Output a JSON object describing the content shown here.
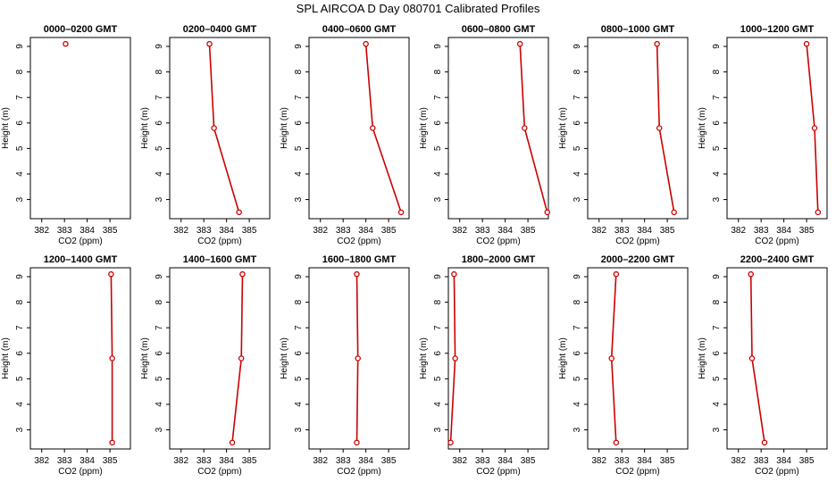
{
  "figure": {
    "title": "SPL AIRCOA D  Day 080701  Calibrated Profiles",
    "line_color": "#cc0000"
  },
  "chart_data": [
    {
      "type": "line",
      "title": "0000–0200 GMT",
      "xlabel": "CO2 (ppm)",
      "ylabel": "Height (m)",
      "xlim": [
        381.5,
        385.9
      ],
      "ylim": [
        2.25,
        9.35
      ],
      "x_ticks": [
        382,
        383,
        384,
        385
      ],
      "y_ticks": [
        3,
        4,
        5,
        6,
        7,
        8,
        9
      ],
      "series": [
        {
          "x": [
            383.05
          ],
          "y": [
            9.1
          ]
        }
      ]
    },
    {
      "type": "line",
      "title": "0200–0400 GMT",
      "xlabel": "CO2 (ppm)",
      "ylabel": "Height (m)",
      "xlim": [
        381.5,
        385.9
      ],
      "ylim": [
        2.25,
        9.35
      ],
      "x_ticks": [
        382,
        383,
        384,
        385
      ],
      "y_ticks": [
        3,
        4,
        5,
        6,
        7,
        8,
        9
      ],
      "series": [
        {
          "x": [
            383.25,
            383.45,
            384.55
          ],
          "y": [
            9.1,
            5.8,
            2.5
          ]
        }
      ]
    },
    {
      "type": "line",
      "title": "0400–0600 GMT",
      "xlabel": "CO2 (ppm)",
      "ylabel": "Height (m)",
      "xlim": [
        381.5,
        385.9
      ],
      "ylim": [
        2.25,
        9.35
      ],
      "x_ticks": [
        382,
        383,
        384,
        385
      ],
      "y_ticks": [
        3,
        4,
        5,
        6,
        7,
        8,
        9
      ],
      "series": [
        {
          "x": [
            384.0,
            384.3,
            385.55
          ],
          "y": [
            9.1,
            5.8,
            2.5
          ]
        }
      ]
    },
    {
      "type": "line",
      "title": "0600–0800 GMT",
      "xlabel": "CO2 (ppm)",
      "ylabel": "Height (m)",
      "xlim": [
        381.5,
        385.9
      ],
      "ylim": [
        2.25,
        9.35
      ],
      "x_ticks": [
        382,
        383,
        384,
        385
      ],
      "y_ticks": [
        3,
        4,
        5,
        6,
        7,
        8,
        9
      ],
      "series": [
        {
          "x": [
            384.65,
            384.85,
            385.85
          ],
          "y": [
            9.1,
            5.8,
            2.5
          ]
        }
      ]
    },
    {
      "type": "line",
      "title": "0800–1000 GMT",
      "xlabel": "CO2 (ppm)",
      "ylabel": "Height (m)",
      "xlim": [
        381.5,
        385.9
      ],
      "ylim": [
        2.25,
        9.35
      ],
      "x_ticks": [
        382,
        383,
        384,
        385
      ],
      "y_ticks": [
        3,
        4,
        5,
        6,
        7,
        8,
        9
      ],
      "series": [
        {
          "x": [
            384.55,
            384.65,
            385.3
          ],
          "y": [
            9.1,
            5.8,
            2.5
          ]
        }
      ]
    },
    {
      "type": "line",
      "title": "1000–1200 GMT",
      "xlabel": "CO2 (ppm)",
      "ylabel": "Height (m)",
      "xlim": [
        381.5,
        385.9
      ],
      "ylim": [
        2.25,
        9.35
      ],
      "x_ticks": [
        382,
        383,
        384,
        385
      ],
      "y_ticks": [
        3,
        4,
        5,
        6,
        7,
        8,
        9
      ],
      "series": [
        {
          "x": [
            385.0,
            385.35,
            385.5
          ],
          "y": [
            9.1,
            5.8,
            2.5
          ]
        }
      ]
    },
    {
      "type": "line",
      "title": "1200–1400 GMT",
      "xlabel": "CO2 (ppm)",
      "ylabel": "Height (m)",
      "xlim": [
        381.5,
        385.9
      ],
      "ylim": [
        2.25,
        9.35
      ],
      "x_ticks": [
        382,
        383,
        384,
        385
      ],
      "y_ticks": [
        3,
        4,
        5,
        6,
        7,
        8,
        9
      ],
      "series": [
        {
          "x": [
            385.05,
            385.1,
            385.1
          ],
          "y": [
            9.1,
            5.8,
            2.5
          ]
        }
      ]
    },
    {
      "type": "line",
      "title": "1400–1600 GMT",
      "xlabel": "CO2 (ppm)",
      "ylabel": "Height (m)",
      "xlim": [
        381.5,
        385.9
      ],
      "ylim": [
        2.25,
        9.35
      ],
      "x_ticks": [
        382,
        383,
        384,
        385
      ],
      "y_ticks": [
        3,
        4,
        5,
        6,
        7,
        8,
        9
      ],
      "series": [
        {
          "x": [
            384.7,
            384.65,
            384.25
          ],
          "y": [
            9.1,
            5.8,
            2.5
          ]
        }
      ]
    },
    {
      "type": "line",
      "title": "1600–1800 GMT",
      "xlabel": "CO2 (ppm)",
      "ylabel": "Height (m)",
      "xlim": [
        381.5,
        385.9
      ],
      "ylim": [
        2.25,
        9.35
      ],
      "x_ticks": [
        382,
        383,
        384,
        385
      ],
      "y_ticks": [
        3,
        4,
        5,
        6,
        7,
        8,
        9
      ],
      "series": [
        {
          "x": [
            383.6,
            383.65,
            383.6
          ],
          "y": [
            9.1,
            5.8,
            2.5
          ]
        }
      ]
    },
    {
      "type": "line",
      "title": "1800–2000 GMT",
      "xlabel": "CO2 (ppm)",
      "ylabel": "Height (m)",
      "xlim": [
        381.5,
        385.9
      ],
      "ylim": [
        2.25,
        9.35
      ],
      "x_ticks": [
        382,
        383,
        384,
        385
      ],
      "y_ticks": [
        3,
        4,
        5,
        6,
        7,
        8,
        9
      ],
      "series": [
        {
          "x": [
            381.75,
            381.8,
            381.6
          ],
          "y": [
            9.1,
            5.8,
            2.5
          ]
        }
      ]
    },
    {
      "type": "line",
      "title": "2000–2200 GMT",
      "xlabel": "CO2 (ppm)",
      "ylabel": "Height (m)",
      "xlim": [
        381.5,
        385.9
      ],
      "ylim": [
        2.25,
        9.35
      ],
      "x_ticks": [
        382,
        383,
        384,
        385
      ],
      "y_ticks": [
        3,
        4,
        5,
        6,
        7,
        8,
        9
      ],
      "series": [
        {
          "x": [
            382.75,
            382.55,
            382.75
          ],
          "y": [
            9.1,
            5.8,
            2.5
          ]
        }
      ]
    },
    {
      "type": "line",
      "title": "2200–2400 GMT",
      "xlabel": "CO2 (ppm)",
      "ylabel": "Height (m)",
      "xlim": [
        381.5,
        385.9
      ],
      "ylim": [
        2.25,
        9.35
      ],
      "x_ticks": [
        382,
        383,
        384,
        385
      ],
      "y_ticks": [
        3,
        4,
        5,
        6,
        7,
        8,
        9
      ],
      "series": [
        {
          "x": [
            382.55,
            382.6,
            383.15
          ],
          "y": [
            9.1,
            5.8,
            2.5
          ]
        }
      ]
    }
  ]
}
